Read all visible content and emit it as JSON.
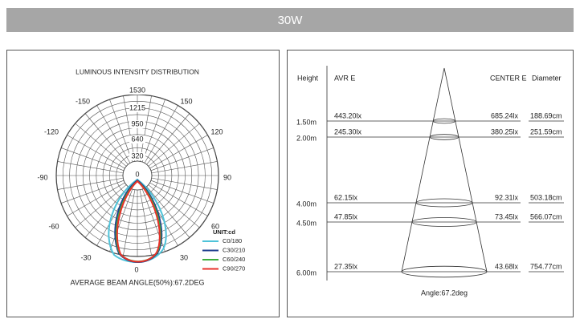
{
  "header": {
    "title": "30W"
  },
  "intensity": {
    "title": "LUMINOUS INTENSITY DISTRIBUTION",
    "ring_labels": [
      "1530",
      "1215",
      "950",
      "640",
      "320",
      "0"
    ],
    "angle_labels": [
      "-150",
      "150",
      "-120",
      "120",
      "-90",
      "90",
      "-60",
      "60",
      "-30",
      "30",
      "0"
    ],
    "unit": "UNIT:cd",
    "legend": [
      {
        "name": "C0/180",
        "color": "#4fc3d9"
      },
      {
        "name": "C30/210",
        "color": "#1f3f8f"
      },
      {
        "name": "C60/240",
        "color": "#3cae3c"
      },
      {
        "name": "C90/270",
        "color": "#e8312a"
      }
    ],
    "footer": "AVERAGE BEAM ANGLE(50%):67.2DEG"
  },
  "illuminance": {
    "headers": {
      "height": "Height",
      "avr": "AVR E",
      "center": "CENTER E",
      "diameter": "Diameter"
    },
    "rows": [
      {
        "height": "1.50m",
        "avr": "443.20lx",
        "center": "685.24lx",
        "diameter": "188.69cm"
      },
      {
        "height": "2.00m",
        "avr": "245.30lx",
        "center": "380.25lx",
        "diameter": "251.59cm"
      },
      {
        "height": "4.00m",
        "avr": "62.15lx",
        "center": "92.31lx",
        "diameter": "503.18cm"
      },
      {
        "height": "4.50m",
        "avr": "47.85lx",
        "center": "73.45lx",
        "diameter": "566.07cm"
      },
      {
        "height": "6.00m",
        "avr": "27.35lx",
        "center": "43.68lx",
        "diameter": "754.77cm"
      }
    ],
    "footer": "Angle:67.2deg"
  }
}
